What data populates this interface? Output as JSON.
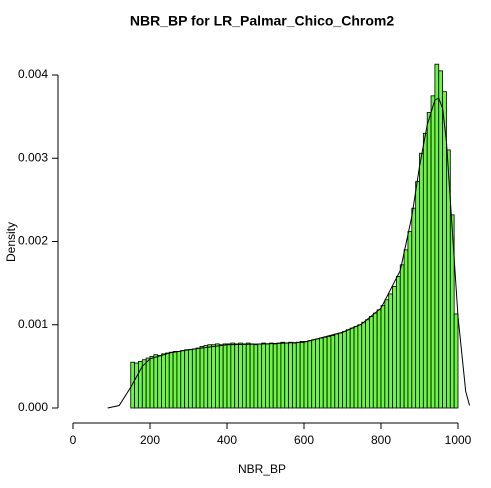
{
  "chart_data": {
    "type": "histogram",
    "title": "NBR_BP for LR_Palmar_Chico_Chrom2",
    "x_label": "NBR_BP",
    "y_label": "Density",
    "bins": [
      150,
      160,
      170,
      180,
      190,
      200,
      210,
      220,
      230,
      240,
      250,
      260,
      270,
      280,
      290,
      300,
      310,
      320,
      330,
      340,
      350,
      360,
      370,
      380,
      390,
      400,
      410,
      420,
      430,
      440,
      450,
      460,
      470,
      480,
      490,
      500,
      510,
      520,
      530,
      540,
      550,
      560,
      570,
      580,
      590,
      600,
      610,
      620,
      630,
      640,
      650,
      660,
      670,
      680,
      690,
      700,
      710,
      720,
      730,
      740,
      750,
      760,
      770,
      780,
      790,
      800,
      810,
      820,
      830,
      840,
      850,
      860,
      870,
      880,
      890,
      900,
      910,
      920,
      930,
      940,
      950,
      960,
      970,
      980,
      990,
      1000
    ],
    "values": [
      0.00055,
      0.00054,
      0.00056,
      0.00058,
      0.0006,
      0.00062,
      0.00064,
      0.00063,
      0.00065,
      0.00066,
      0.00067,
      0.00068,
      0.00068,
      0.00069,
      0.0007,
      0.0007,
      0.00071,
      0.00072,
      0.00074,
      0.00075,
      0.00076,
      0.00076,
      0.00077,
      0.00076,
      0.00077,
      0.00077,
      0.00078,
      0.00077,
      0.00078,
      0.00077,
      0.00078,
      0.00077,
      0.00076,
      0.00077,
      0.00078,
      0.00077,
      0.00078,
      0.00077,
      0.00078,
      0.00079,
      0.00078,
      0.00079,
      0.00078,
      0.00079,
      0.0008,
      0.0008,
      0.00081,
      0.00082,
      0.00083,
      0.00084,
      0.00085,
      0.00086,
      0.00087,
      0.00089,
      0.0009,
      0.00092,
      0.00094,
      0.00096,
      0.00098,
      0.001,
      0.00103,
      0.00106,
      0.0011,
      0.00114,
      0.00118,
      0.00123,
      0.0013,
      0.00137,
      0.00146,
      0.00158,
      0.00172,
      0.0019,
      0.00212,
      0.0024,
      0.00272,
      0.00306,
      0.0033,
      0.00355,
      0.00375,
      0.00413,
      0.00405,
      0.0038,
      0.0031,
      0.00232,
      0.00113
    ],
    "color": "#6cf542",
    "density": {
      "x": [
        90,
        120,
        150,
        180,
        200,
        250,
        300,
        400,
        500,
        600,
        700,
        750,
        800,
        850,
        880,
        900,
        920,
        940,
        950,
        960,
        970,
        980,
        1000,
        1020,
        1030
      ],
      "y": [
        0,
        3e-05,
        0.00025,
        0.0005,
        0.00059,
        0.00066,
        0.0007,
        0.00076,
        0.00077,
        0.00079,
        0.00091,
        0.00101,
        0.0012,
        0.00165,
        0.0023,
        0.0029,
        0.0034,
        0.0037,
        0.00372,
        0.0036,
        0.0032,
        0.0025,
        0.0011,
        0.0002,
        3e-05
      ],
      "color": "#000000"
    },
    "xlim": [
      0,
      1000
    ],
    "ylim": [
      0,
      0.004
    ],
    "xticks": [
      0,
      200,
      400,
      600,
      800,
      1000
    ],
    "yticks": [
      {
        "value": 0,
        "label": "0.000"
      },
      {
        "value": 0.001,
        "label": "0.001"
      },
      {
        "value": 0.002,
        "label": "0.002"
      },
      {
        "value": 0.003,
        "label": "0.003"
      },
      {
        "value": 0.004,
        "label": "0.004"
      }
    ]
  }
}
